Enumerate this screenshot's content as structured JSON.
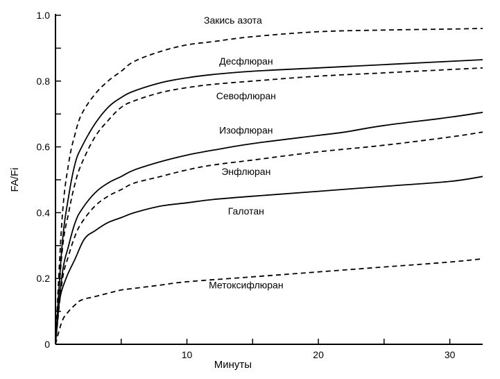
{
  "chart_data": {
    "type": "line",
    "title": "",
    "xlabel": "Минуты",
    "ylabel": "FA/Fi",
    "xlim": [
      0,
      32.5
    ],
    "ylim": [
      0,
      1.0
    ],
    "x_ticks": [
      5,
      10,
      15,
      20,
      25,
      30
    ],
    "x_tick_labels": [
      "10",
      "20",
      "30"
    ],
    "x_tick_label_values": [
      10,
      20,
      30
    ],
    "y_ticks": [
      0,
      0.1,
      0.2,
      0.3,
      0.4,
      0.5,
      0.6,
      0.7,
      0.8,
      0.9,
      1.0
    ],
    "y_tick_labels": [
      "0",
      "0.2",
      "0.4",
      "0.6",
      "0.8",
      "1.0"
    ],
    "y_tick_label_values": [
      0,
      0.2,
      0.4,
      0.6,
      0.8,
      1.0
    ],
    "grid": false,
    "legend": "inline labels",
    "series": [
      {
        "name": "Закись азота",
        "style": "dashed",
        "label_at": [
          13.5,
          0.975
        ],
        "x": [
          0,
          0.5,
          1,
          1.5,
          2,
          3,
          4,
          5,
          6,
          8,
          10,
          12,
          15,
          20,
          25,
          30,
          32.5
        ],
        "y": [
          0,
          0.38,
          0.55,
          0.64,
          0.7,
          0.76,
          0.8,
          0.83,
          0.86,
          0.89,
          0.91,
          0.92,
          0.935,
          0.95,
          0.955,
          0.958,
          0.96
        ]
      },
      {
        "name": "Десфлюран",
        "style": "solid",
        "label_at": [
          14.5,
          0.85
        ],
        "x": [
          0,
          0.5,
          1,
          1.5,
          2,
          3,
          4,
          5,
          6,
          8,
          10,
          12,
          15,
          20,
          25,
          30,
          32.5
        ],
        "y": [
          0,
          0.3,
          0.45,
          0.55,
          0.6,
          0.67,
          0.72,
          0.75,
          0.77,
          0.795,
          0.81,
          0.82,
          0.83,
          0.84,
          0.85,
          0.86,
          0.865
        ]
      },
      {
        "name": "Севофлюран",
        "style": "dashed",
        "label_at": [
          14.5,
          0.745
        ],
        "x": [
          0,
          0.5,
          1,
          1.5,
          2,
          3,
          4,
          5,
          6,
          8,
          10,
          12,
          15,
          20,
          25,
          30,
          32.5
        ],
        "y": [
          0,
          0.28,
          0.4,
          0.49,
          0.55,
          0.63,
          0.68,
          0.72,
          0.74,
          0.765,
          0.78,
          0.79,
          0.8,
          0.815,
          0.825,
          0.835,
          0.84
        ]
      },
      {
        "name": "Изофлюран",
        "style": "solid",
        "label_at": [
          14.5,
          0.64
        ],
        "x": [
          0,
          0.5,
          1,
          1.5,
          2,
          3,
          4,
          5,
          6,
          8,
          10,
          12,
          15,
          20,
          22,
          25,
          30,
          32.5
        ],
        "y": [
          0,
          0.21,
          0.3,
          0.37,
          0.41,
          0.46,
          0.49,
          0.51,
          0.53,
          0.555,
          0.575,
          0.59,
          0.61,
          0.635,
          0.645,
          0.665,
          0.69,
          0.705
        ]
      },
      {
        "name": "Энфлюран",
        "style": "dashed",
        "label_at": [
          14.5,
          0.515
        ],
        "x": [
          0,
          0.5,
          1,
          1.5,
          2,
          3,
          4,
          5,
          6,
          8,
          10,
          12,
          15,
          20,
          25,
          30,
          32.5
        ],
        "y": [
          0,
          0.19,
          0.27,
          0.33,
          0.37,
          0.42,
          0.45,
          0.47,
          0.49,
          0.51,
          0.53,
          0.545,
          0.56,
          0.585,
          0.605,
          0.63,
          0.645
        ]
      },
      {
        "name": "Галотан",
        "style": "solid",
        "label_at": [
          14.5,
          0.395
        ],
        "x": [
          0,
          0.3,
          0.8,
          1.5,
          2.2,
          3,
          4,
          5,
          6,
          8,
          10,
          12,
          15,
          20,
          25,
          30,
          32.5
        ],
        "y": [
          0,
          0.13,
          0.2,
          0.26,
          0.32,
          0.345,
          0.37,
          0.385,
          0.4,
          0.42,
          0.43,
          0.44,
          0.45,
          0.465,
          0.48,
          0.495,
          0.51
        ]
      },
      {
        "name": "Метоксифлюран",
        "style": "dashed",
        "label_at": [
          14.5,
          0.17
        ],
        "x": [
          0,
          0.5,
          1,
          1.5,
          2,
          3,
          4,
          5,
          6,
          8,
          10,
          15,
          20,
          25,
          30,
          32.5
        ],
        "y": [
          0,
          0.07,
          0.1,
          0.12,
          0.135,
          0.145,
          0.155,
          0.165,
          0.17,
          0.18,
          0.19,
          0.205,
          0.22,
          0.235,
          0.25,
          0.26
        ]
      }
    ]
  }
}
